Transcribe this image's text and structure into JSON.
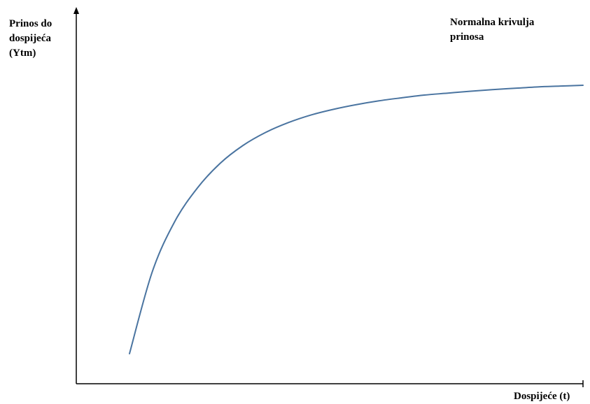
{
  "chart_data": {
    "type": "line",
    "title": "",
    "ylabel_lines": [
      "Prinos do",
      "dospijeća",
      "(Ytm)"
    ],
    "xlabel": "Dospijeće (t)",
    "curve_label_lines": [
      "Normalna krivulja",
      "prinosa"
    ],
    "axis_color": "#000000",
    "grid": false,
    "xticks": [],
    "yticks": [],
    "series": [
      {
        "name": "Normalna krivulja prinosa",
        "color": "#4a74a0",
        "x": [
          0.0,
          0.05,
          0.1,
          0.15,
          0.2,
          0.25,
          0.3,
          0.35,
          0.4,
          0.45,
          0.5,
          0.55,
          0.6,
          0.65,
          0.7,
          0.75,
          0.8,
          0.85,
          0.9,
          0.95,
          1.0
        ],
        "y": [
          0.0,
          0.299,
          0.485,
          0.608,
          0.698,
          0.763,
          0.811,
          0.847,
          0.875,
          0.896,
          0.913,
          0.927,
          0.938,
          0.948,
          0.955,
          0.962,
          0.968,
          0.973,
          0.978,
          0.981,
          0.984
        ]
      }
    ]
  }
}
